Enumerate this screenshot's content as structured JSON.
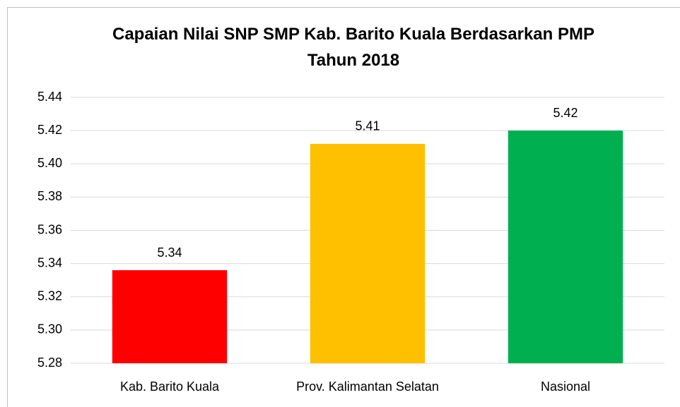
{
  "chart_data": {
    "type": "bar",
    "title": "Capaian Nilai SNP SMP Kab. Barito Kuala Berdasarkan PMP Tahun 2018",
    "categories": [
      "Kab. Barito Kuala",
      "Prov. Kalimantan Selatan",
      "Nasional"
    ],
    "values": [
      5.336,
      5.412,
      5.42
    ],
    "value_labels": [
      "5.34",
      "5.41",
      "5.42"
    ],
    "colors": [
      "#ff0000",
      "#ffc000",
      "#00b050"
    ],
    "ylim": [
      5.28,
      5.44
    ],
    "yticks": [
      5.28,
      {
        "value": 5.3,
        "label": "5.30"
      },
      5.32,
      5.34,
      5.36,
      5.38,
      {
        "value": 5.4,
        "label": "5.40"
      },
      5.42,
      5.44
    ],
    "grid": true
  }
}
